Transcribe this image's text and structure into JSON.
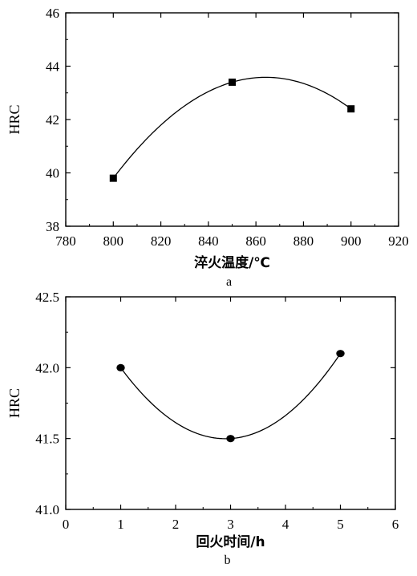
{
  "chart_data": [
    {
      "type": "scatter",
      "panel_label": "a",
      "xlabel": "淬火温度/℃",
      "ylabel": "HRC",
      "xlim": [
        780,
        920
      ],
      "ylim": [
        38,
        46
      ],
      "xticks": [
        780,
        800,
        820,
        840,
        860,
        880,
        900,
        920
      ],
      "yticks": [
        38,
        40,
        42,
        44,
        46
      ],
      "marker": "square",
      "points": [
        {
          "x": 800,
          "y": 39.8
        },
        {
          "x": 850,
          "y": 43.4
        },
        {
          "x": 900,
          "y": 42.4
        }
      ],
      "fit_curve": true
    },
    {
      "type": "scatter",
      "panel_label": "b",
      "xlabel": "回火时间/h",
      "ylabel": "HRC",
      "xlim": [
        0,
        6
      ],
      "ylim": [
        41.0,
        42.5
      ],
      "xticks": [
        0,
        1,
        2,
        3,
        4,
        5,
        6
      ],
      "yticks": [
        "41.0",
        "41.5",
        "42.0",
        "42.5"
      ],
      "marker": "circle",
      "points": [
        {
          "x": 1,
          "y": 42.0
        },
        {
          "x": 3,
          "y": 41.5
        },
        {
          "x": 5,
          "y": 42.1
        }
      ],
      "fit_curve": true
    }
  ]
}
